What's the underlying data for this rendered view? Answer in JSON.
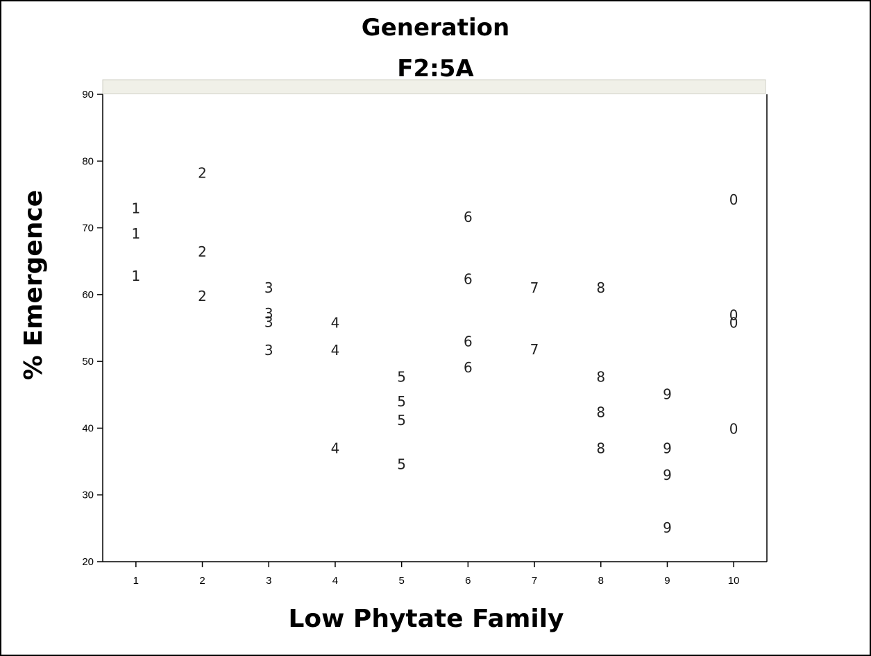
{
  "chart_data": {
    "type": "scatter",
    "title": "Generation",
    "subtitle": "F2:5A",
    "xlabel": "Low Phytate Family",
    "ylabel": "% Emergence",
    "xlim": [
      0.5,
      10.5
    ],
    "ylim": [
      20,
      90
    ],
    "x_ticks": [
      1,
      2,
      3,
      4,
      5,
      6,
      7,
      8,
      9,
      10
    ],
    "x_tick_labels": [
      "1",
      "2",
      "3",
      "4",
      "5",
      "6",
      "7",
      "8",
      "9",
      "10"
    ],
    "y_ticks": [
      20,
      30,
      40,
      50,
      60,
      70,
      80,
      90
    ],
    "y_tick_labels": [
      "20",
      "30",
      "40",
      "50",
      "60",
      "70",
      "80",
      "90"
    ],
    "marker_style": "family digit (10 shown as 0)",
    "grid": false,
    "points": [
      {
        "x": 1,
        "y": 72.9,
        "label": "1"
      },
      {
        "x": 1,
        "y": 69.1,
        "label": "1"
      },
      {
        "x": 1,
        "y": 62.8,
        "label": "1"
      },
      {
        "x": 2,
        "y": 78.2,
        "label": "2"
      },
      {
        "x": 2,
        "y": 66.4,
        "label": "2"
      },
      {
        "x": 2,
        "y": 59.8,
        "label": "2"
      },
      {
        "x": 3,
        "y": 61.0,
        "label": "3"
      },
      {
        "x": 3,
        "y": 57.2,
        "label": "3"
      },
      {
        "x": 3,
        "y": 55.9,
        "label": "3"
      },
      {
        "x": 3,
        "y": 51.7,
        "label": "3"
      },
      {
        "x": 4,
        "y": 55.8,
        "label": "4"
      },
      {
        "x": 4,
        "y": 51.7,
        "label": "4"
      },
      {
        "x": 4,
        "y": 37.0,
        "label": "4"
      },
      {
        "x": 5,
        "y": 47.7,
        "label": "5"
      },
      {
        "x": 5,
        "y": 44.0,
        "label": "5"
      },
      {
        "x": 5,
        "y": 41.2,
        "label": "5"
      },
      {
        "x": 5,
        "y": 34.6,
        "label": "5"
      },
      {
        "x": 6,
        "y": 71.6,
        "label": "6"
      },
      {
        "x": 6,
        "y": 62.3,
        "label": "6"
      },
      {
        "x": 6,
        "y": 53.0,
        "label": "6"
      },
      {
        "x": 6,
        "y": 49.1,
        "label": "6"
      },
      {
        "x": 7,
        "y": 61.0,
        "label": "7"
      },
      {
        "x": 7,
        "y": 51.8,
        "label": "7"
      },
      {
        "x": 8,
        "y": 61.0,
        "label": "8"
      },
      {
        "x": 8,
        "y": 47.7,
        "label": "8"
      },
      {
        "x": 8,
        "y": 42.4,
        "label": "8"
      },
      {
        "x": 8,
        "y": 37.0,
        "label": "8"
      },
      {
        "x": 9,
        "y": 45.1,
        "label": "9"
      },
      {
        "x": 9,
        "y": 37.0,
        "label": "9"
      },
      {
        "x": 9,
        "y": 33.0,
        "label": "9"
      },
      {
        "x": 9,
        "y": 25.1,
        "label": "9"
      },
      {
        "x": 10,
        "y": 74.2,
        "label": "0"
      },
      {
        "x": 10,
        "y": 56.9,
        "label": "0"
      },
      {
        "x": 10,
        "y": 55.8,
        "label": "0"
      },
      {
        "x": 10,
        "y": 39.9,
        "label": "0"
      }
    ]
  },
  "colors": {
    "marker": "#222222",
    "axis": "#000000",
    "header_band": "#f0f0e8",
    "background": "#ffffff"
  }
}
